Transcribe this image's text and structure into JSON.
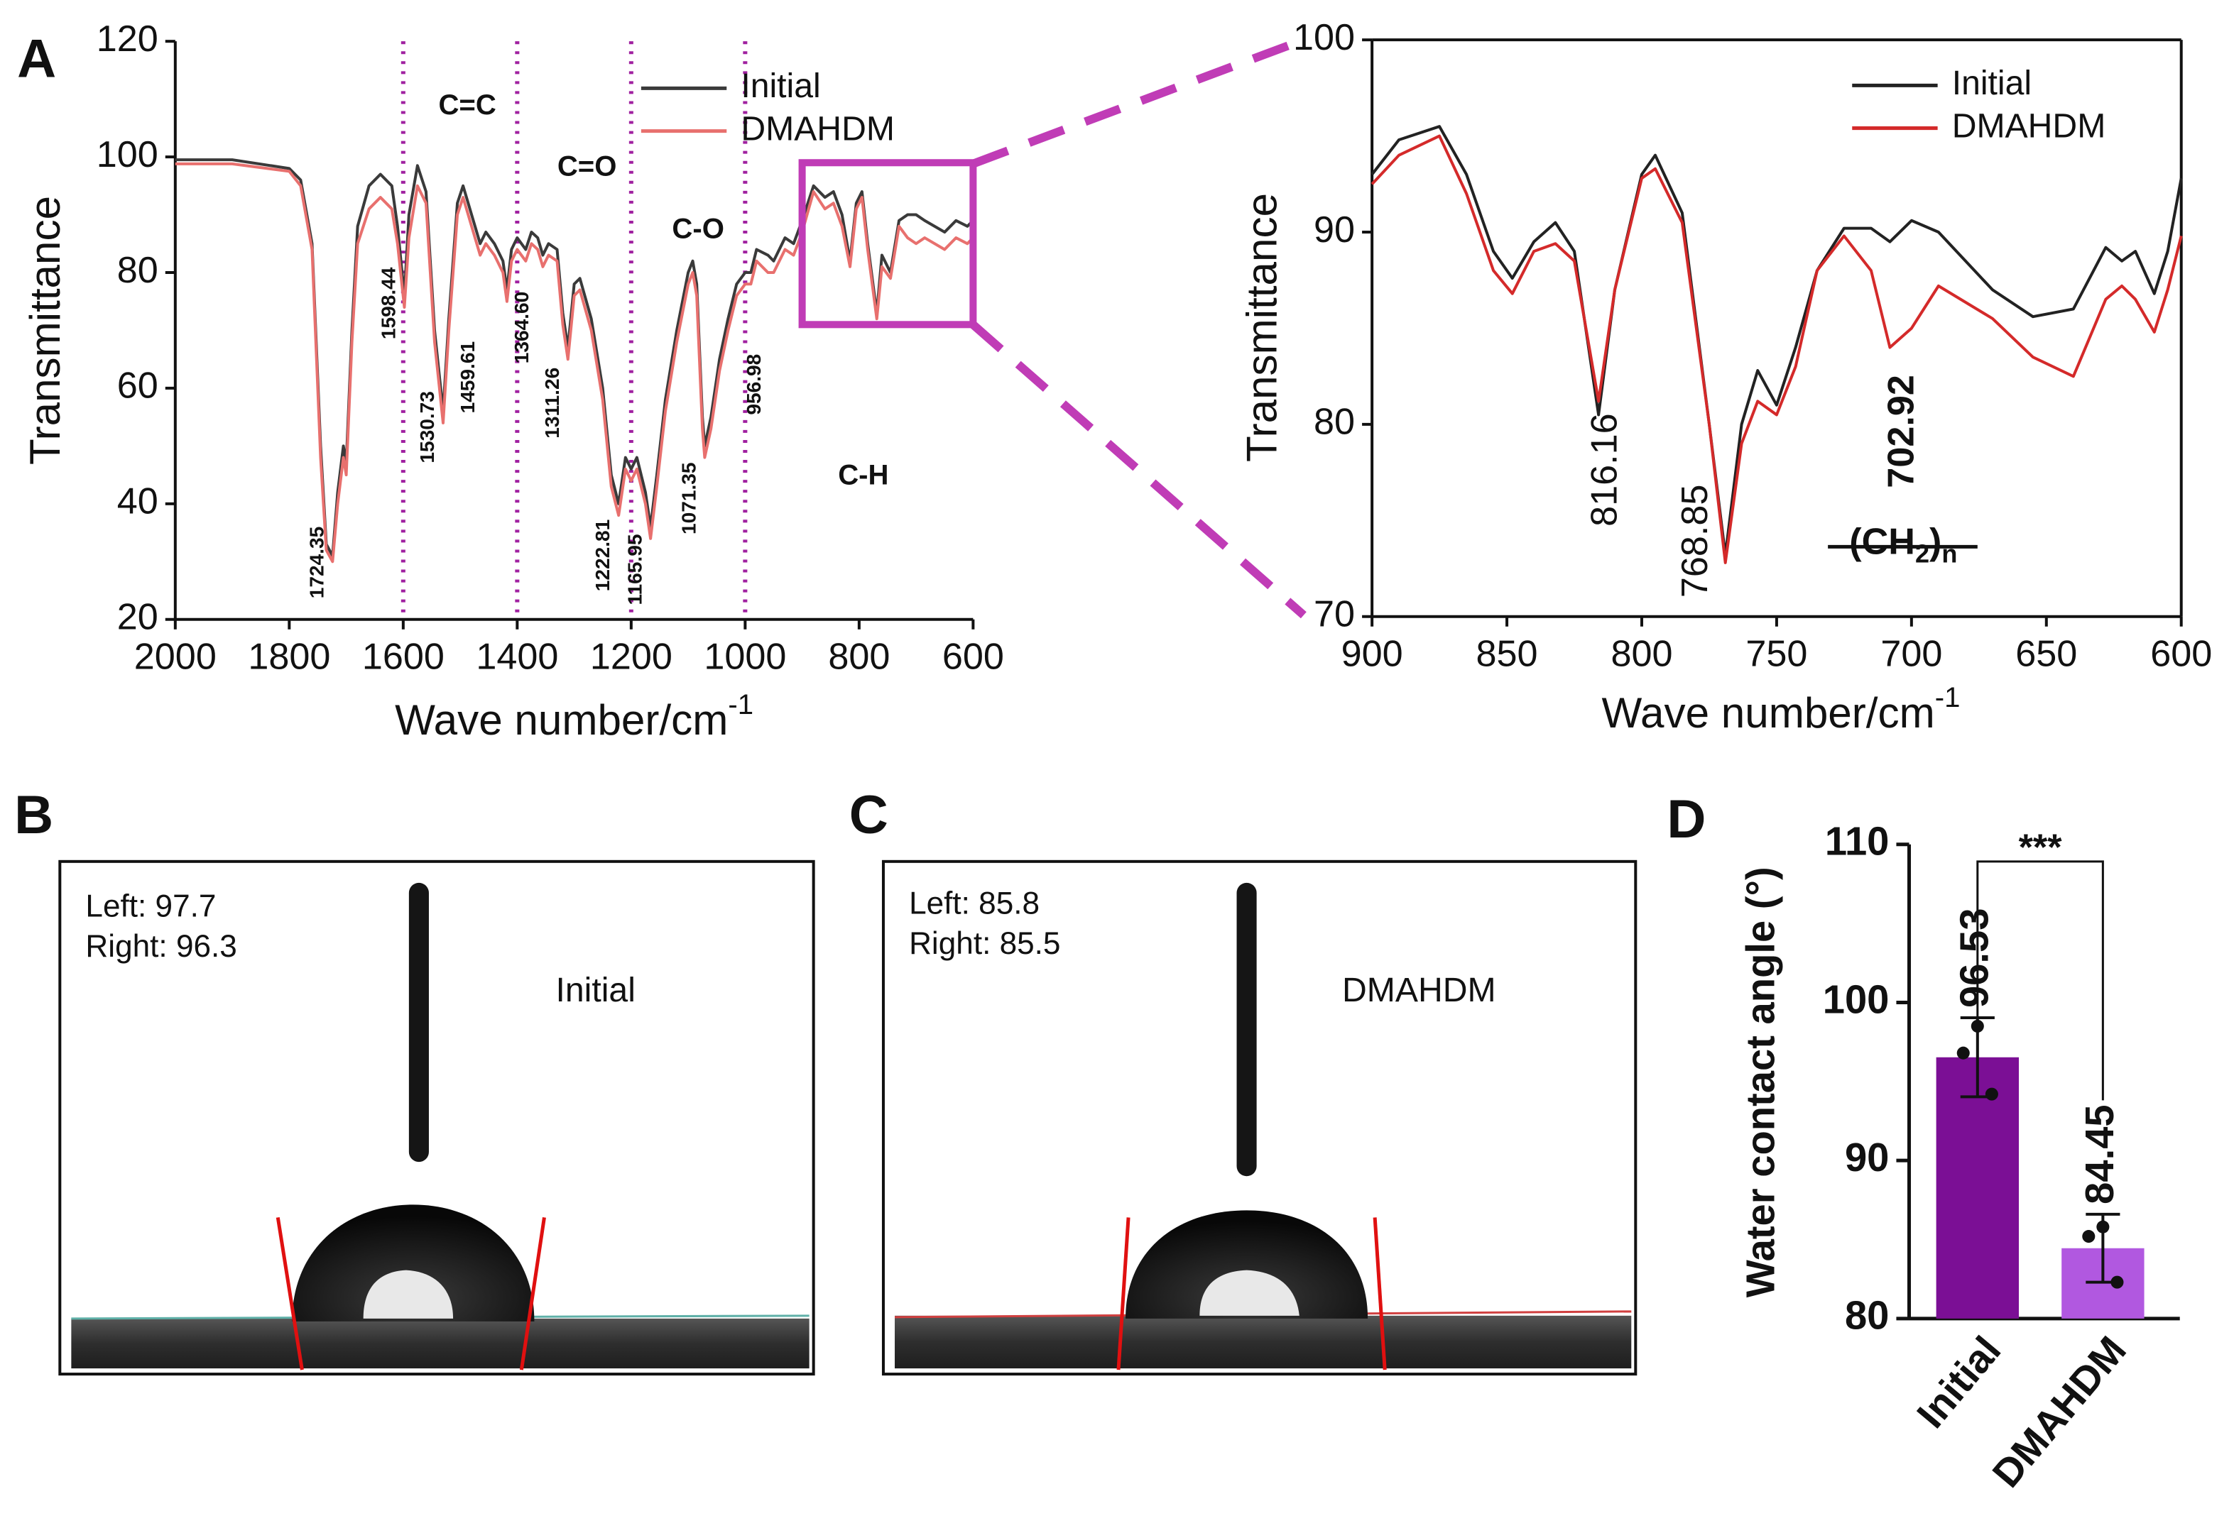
{
  "chart_data": [
    {
      "type": "line",
      "panel": "A",
      "ylabel": "Transmittance",
      "xlabel": "Wave number/cm",
      "xlabel_sup": "-1",
      "x": [
        2000,
        1900,
        1800,
        1780,
        1760,
        1745,
        1735,
        1724,
        1715,
        1705,
        1700,
        1690,
        1680,
        1660,
        1640,
        1620,
        1610,
        1598,
        1590,
        1575,
        1560,
        1545,
        1530,
        1520,
        1505,
        1495,
        1480,
        1465,
        1455,
        1440,
        1425,
        1418,
        1410,
        1400,
        1385,
        1375,
        1364,
        1355,
        1345,
        1330,
        1320,
        1311,
        1300,
        1290,
        1270,
        1250,
        1235,
        1222,
        1210,
        1200,
        1190,
        1175,
        1166,
        1155,
        1140,
        1120,
        1100,
        1092,
        1085,
        1075,
        1071,
        1060,
        1045,
        1030,
        1015,
        1000,
        990,
        980,
        960,
        950,
        930,
        915,
        900,
        880,
        860,
        845,
        830,
        816,
        805,
        795,
        785,
        769,
        760,
        745,
        730,
        715,
        700,
        685,
        650,
        630,
        610,
        600
      ],
      "series": [
        {
          "name": "Initial",
          "color": "#3a3a3a",
          "values": [
            99.5,
            99.5,
            98,
            96,
            85,
            50,
            33,
            31,
            42,
            50,
            47,
            70,
            88,
            95,
            97,
            95,
            88,
            76,
            90,
            98.5,
            94,
            70,
            56,
            72,
            92,
            95,
            90,
            85,
            87,
            85,
            82,
            77,
            84,
            86,
            84,
            87,
            86,
            83,
            85,
            84,
            73,
            67,
            78,
            79,
            72,
            60,
            45,
            40,
            48,
            46,
            48,
            42,
            36,
            45,
            58,
            70,
            80,
            82,
            78,
            55,
            50,
            55,
            65,
            72,
            78,
            80,
            80,
            84,
            83,
            82,
            86,
            85,
            89,
            95,
            93,
            94,
            90,
            82,
            92,
            94,
            85,
            73,
            83,
            80,
            89,
            90,
            90,
            89,
            87,
            89,
            88,
            89
          ]
        },
        {
          "name": "DMAHDM",
          "color": "#e8706e",
          "values": [
            98.8,
            98.8,
            97.5,
            95,
            84,
            48,
            32,
            30,
            40,
            48,
            45,
            68,
            85,
            91,
            93,
            91,
            85,
            74,
            86,
            95,
            92,
            68,
            54,
            70,
            90,
            93,
            88,
            83,
            85,
            83,
            80,
            75,
            82,
            84,
            82,
            85,
            84,
            81,
            83,
            82,
            71,
            65,
            76,
            77,
            70,
            58,
            43,
            38,
            46,
            44,
            46,
            40,
            34,
            43,
            56,
            68,
            78,
            80,
            76,
            53,
            48,
            53,
            63,
            70,
            76,
            78,
            78,
            82,
            80,
            80,
            84,
            83,
            87,
            94,
            91,
            92,
            88,
            81,
            91,
            93,
            84,
            72,
            81,
            79,
            88,
            86,
            85,
            86,
            84,
            86,
            85,
            86
          ]
        }
      ],
      "xlim": [
        2000,
        600
      ],
      "ylim": [
        20,
        120
      ],
      "xticks": [
        2000,
        1800,
        1600,
        1400,
        1200,
        1000,
        800,
        600
      ],
      "yticks": [
        20,
        40,
        60,
        80,
        100,
        120
      ],
      "legend": "upper right",
      "regions": [
        "C=C",
        "C=O",
        "C-O",
        "C-H"
      ],
      "divider_lines": [
        1600,
        1400,
        1200,
        1000
      ],
      "divider_color": "#a020a0",
      "peaks": [
        1724.35,
        1598.44,
        1530.73,
        1459.61,
        {
          "value": 1364.6,
          "label": "1364.60"
        },
        1311.26,
        1222.81,
        1165.95,
        1071.35,
        956.98
      ],
      "highlight": {
        "xlim": [
          900,
          600
        ],
        "ylim": [
          71,
          99
        ],
        "color": "#c03cb6"
      }
    },
    {
      "type": "line",
      "ylabel": "Transmittance",
      "xlabel": "Wave number/cm",
      "xlabel_sup": "-1",
      "x": [
        900,
        890,
        875,
        865,
        855,
        848,
        840,
        832,
        825,
        816,
        810,
        800,
        795,
        785,
        775,
        769,
        763,
        757,
        750,
        743,
        735,
        725,
        715,
        708,
        700,
        690,
        670,
        655,
        640,
        628,
        622,
        617,
        610,
        605,
        600
      ],
      "series": [
        {
          "name": "Initial",
          "color": "#222222",
          "values": [
            93,
            94.8,
            95.5,
            93,
            89,
            87.6,
            89.5,
            90.5,
            89,
            80.5,
            87,
            93,
            94,
            91,
            80,
            73.2,
            80,
            82.8,
            81,
            84,
            88,
            90.2,
            90.2,
            89.5,
            90.6,
            90,
            87,
            85.6,
            86,
            89.2,
            88.5,
            89,
            86.8,
            89,
            92.8
          ]
        },
        {
          "name": "DMAHDM",
          "color": "#d42a2a",
          "values": [
            92.5,
            94,
            95,
            92,
            88,
            86.8,
            89,
            89.4,
            88.5,
            81.2,
            87,
            92.8,
            93.3,
            90.5,
            80,
            72.8,
            79,
            81.2,
            80.5,
            83,
            88,
            89.8,
            88,
            84,
            85,
            87.2,
            85.5,
            83.5,
            82.5,
            86.5,
            87.2,
            86.5,
            84.8,
            87,
            89.8
          ]
        }
      ],
      "xlim": [
        900,
        600
      ],
      "ylim": [
        70,
        100
      ],
      "xticks": [
        900,
        850,
        800,
        750,
        700,
        650,
        600
      ],
      "yticks": [
        70,
        80,
        90,
        100
      ],
      "legend": "upper right",
      "peaks": [
        816.16,
        768.85,
        702.92
      ],
      "peak_colors": [
        "#222222",
        "#222222",
        "#d42a2a"
      ],
      "polymer_label": [
        "(CH",
        "2",
        ")",
        "n"
      ]
    },
    {
      "type": "bar",
      "panel": "D",
      "ylabel": "Water contact angle (°)",
      "categories": [
        "Initial",
        "DMAHDM"
      ],
      "values": [
        96.53,
        84.45
      ],
      "error": [
        2.5,
        2.15
      ],
      "points": [
        [
          98.5,
          96.8,
          94.2
        ],
        [
          85.8,
          85.2,
          82.3
        ]
      ],
      "colors": [
        "#7b0f95",
        "#b158e0"
      ],
      "ylim": [
        80,
        110
      ],
      "yticks": [
        80,
        90,
        100,
        110
      ],
      "significance": "***"
    }
  ],
  "photos": [
    {
      "panel": "B",
      "left": "Left: 97.7",
      "right": "Right: 96.3",
      "label": "Initial"
    },
    {
      "panel": "C",
      "left": "Left: 85.8",
      "right": "Right: 85.5",
      "label": "DMAHDM"
    }
  ]
}
